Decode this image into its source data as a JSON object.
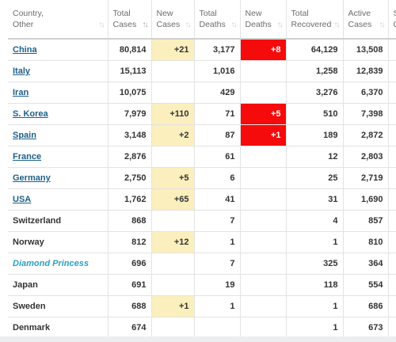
{
  "columns": [
    {
      "line1": "Country,",
      "line2": "Other",
      "sort_icon": "sort-icon"
    },
    {
      "line1": "Total",
      "line2": "Cases",
      "sort_icon": "sort-desc-icon"
    },
    {
      "line1": "New",
      "line2": "Cases",
      "sort_icon": "sort-icon"
    },
    {
      "line1": "Total",
      "line2": "Deaths",
      "sort_icon": "sort-icon"
    },
    {
      "line1": "New",
      "line2": "Deaths",
      "sort_icon": "sort-icon"
    },
    {
      "line1": "Total",
      "line2": "Recovered",
      "sort_icon": "sort-icon"
    },
    {
      "line1": "Active",
      "line2": "Cases",
      "sort_icon": "sort-icon"
    },
    {
      "line1": "S",
      "line2": "C",
      "sort_icon": ""
    }
  ],
  "colors": {
    "link": "#1d5f8a",
    "italic_link": "#2aa0c0",
    "new_cases_highlight": "#fbefbd",
    "new_deaths_highlight": "#f50b0b"
  },
  "rows": [
    {
      "country": "China",
      "style": "link",
      "total_cases": "80,814",
      "new_cases": "+21",
      "total_deaths": "3,177",
      "new_deaths": "+8",
      "total_recovered": "64,129",
      "active_cases": "13,508"
    },
    {
      "country": "Italy",
      "style": "link",
      "total_cases": "15,113",
      "new_cases": "",
      "total_deaths": "1,016",
      "new_deaths": "",
      "total_recovered": "1,258",
      "active_cases": "12,839"
    },
    {
      "country": "Iran",
      "style": "link",
      "total_cases": "10,075",
      "new_cases": "",
      "total_deaths": "429",
      "new_deaths": "",
      "total_recovered": "3,276",
      "active_cases": "6,370"
    },
    {
      "country": "S. Korea",
      "style": "link",
      "total_cases": "7,979",
      "new_cases": "+110",
      "total_deaths": "71",
      "new_deaths": "+5",
      "total_recovered": "510",
      "active_cases": "7,398"
    },
    {
      "country": "Spain",
      "style": "link",
      "total_cases": "3,148",
      "new_cases": "+2",
      "total_deaths": "87",
      "new_deaths": "+1",
      "total_recovered": "189",
      "active_cases": "2,872"
    },
    {
      "country": "France",
      "style": "link",
      "total_cases": "2,876",
      "new_cases": "",
      "total_deaths": "61",
      "new_deaths": "",
      "total_recovered": "12",
      "active_cases": "2,803"
    },
    {
      "country": "Germany",
      "style": "link",
      "total_cases": "2,750",
      "new_cases": "+5",
      "total_deaths": "6",
      "new_deaths": "",
      "total_recovered": "25",
      "active_cases": "2,719"
    },
    {
      "country": "USA",
      "style": "link",
      "total_cases": "1,762",
      "new_cases": "+65",
      "total_deaths": "41",
      "new_deaths": "",
      "total_recovered": "31",
      "active_cases": "1,690"
    },
    {
      "country": "Switzerland",
      "style": "plain",
      "total_cases": "868",
      "new_cases": "",
      "total_deaths": "7",
      "new_deaths": "",
      "total_recovered": "4",
      "active_cases": "857"
    },
    {
      "country": "Norway",
      "style": "plain",
      "total_cases": "812",
      "new_cases": "+12",
      "total_deaths": "1",
      "new_deaths": "",
      "total_recovered": "1",
      "active_cases": "810"
    },
    {
      "country": "Diamond Princess",
      "style": "italic",
      "total_cases": "696",
      "new_cases": "",
      "total_deaths": "7",
      "new_deaths": "",
      "total_recovered": "325",
      "active_cases": "364"
    },
    {
      "country": "Japan",
      "style": "plain",
      "total_cases": "691",
      "new_cases": "",
      "total_deaths": "19",
      "new_deaths": "",
      "total_recovered": "118",
      "active_cases": "554"
    },
    {
      "country": "Sweden",
      "style": "plain",
      "total_cases": "688",
      "new_cases": "+1",
      "total_deaths": "1",
      "new_deaths": "",
      "total_recovered": "1",
      "active_cases": "686"
    },
    {
      "country": "Denmark",
      "style": "plain",
      "total_cases": "674",
      "new_cases": "",
      "total_deaths": "",
      "new_deaths": "",
      "total_recovered": "1",
      "active_cases": "673"
    }
  ]
}
